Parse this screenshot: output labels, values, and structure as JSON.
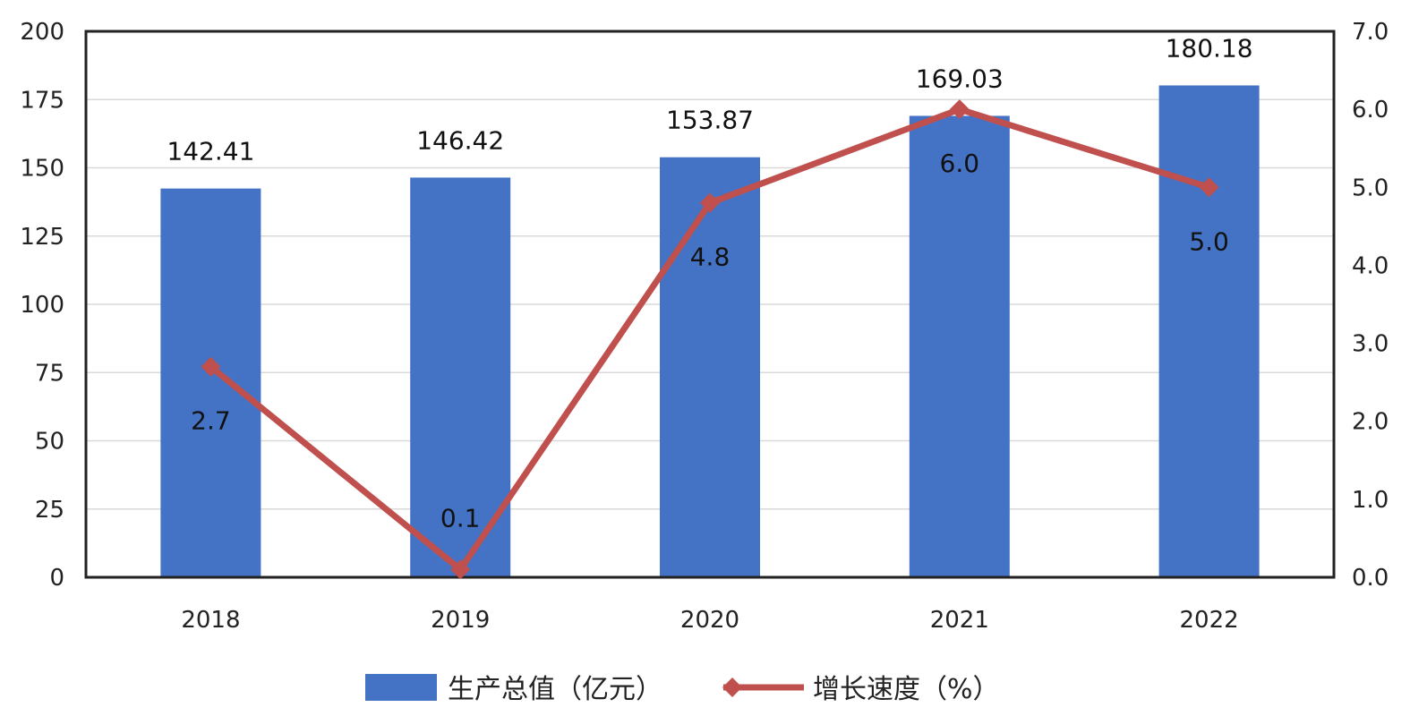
{
  "chart_data": {
    "type": "bar",
    "categories": [
      "2018",
      "2019",
      "2020",
      "2021",
      "2022"
    ],
    "series": [
      {
        "name": "生产总值（亿元）",
        "type": "bar",
        "axis": "left",
        "color": "#4472C4",
        "values": [
          142.41,
          146.42,
          153.87,
          169.03,
          180.18
        ],
        "labels": [
          "142.41",
          "146.42",
          "153.87",
          "169.03",
          "180.18"
        ]
      },
      {
        "name": "增长速度（%）",
        "type": "line",
        "axis": "right",
        "color": "#C0504D",
        "values": [
          2.7,
          0.1,
          4.8,
          6.0,
          5.0
        ],
        "labels": [
          "2.7",
          "0.1",
          "4.8",
          "6.0",
          "5.0"
        ]
      }
    ],
    "y_left": {
      "min": 0,
      "max": 200,
      "ticks": [
        0,
        25,
        50,
        75,
        100,
        125,
        150,
        175,
        200
      ],
      "tick_labels": [
        "0",
        "25",
        "50",
        "75",
        "100",
        "125",
        "150",
        "175",
        "200"
      ]
    },
    "y_right": {
      "min": 0,
      "max": 7,
      "ticks": [
        0,
        1,
        2,
        3,
        4,
        5,
        6,
        7
      ],
      "tick_labels": [
        "0.0",
        "1.0",
        "2.0",
        "3.0",
        "4.0",
        "5.0",
        "6.0",
        "7.0"
      ]
    },
    "grid": true,
    "legend": "bottom"
  }
}
